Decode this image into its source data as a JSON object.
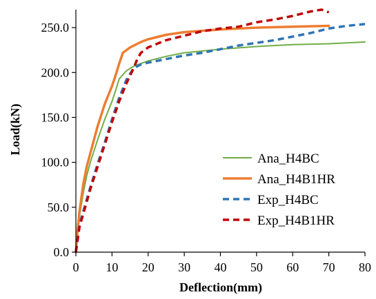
{
  "chart_data": {
    "type": "line",
    "title": "",
    "xlabel": "Deflection(mm)",
    "ylabel": "Load(kN)",
    "xlim": [
      0,
      80
    ],
    "ylim": [
      0,
      270
    ],
    "x_ticks": [
      0,
      10,
      20,
      30,
      40,
      50,
      60,
      70,
      80
    ],
    "x_tick_labels": [
      "0",
      "10",
      "20",
      "30",
      "40",
      "50",
      "60",
      "70",
      "80"
    ],
    "y_ticks": [
      0,
      50,
      100,
      150,
      200,
      250
    ],
    "y_tick_labels": [
      "0.0",
      "50.0",
      "100.0",
      "150.0",
      "200.0",
      "250.0"
    ],
    "grid": false,
    "legend_position": "lower-right",
    "series": [
      {
        "name": "Ana_H4BC",
        "color": "#70ad47",
        "style": "solid",
        "x": [
          0,
          0.5,
          1,
          2,
          3,
          4,
          6,
          8,
          10,
          11,
          12,
          14,
          16,
          20,
          25,
          30,
          40,
          50,
          60,
          70,
          80
        ],
        "y": [
          0,
          20,
          40,
          65,
          85,
          100,
          125,
          148,
          168,
          180,
          193,
          202,
          207,
          213,
          218,
          222,
          226,
          229,
          231,
          232,
          234
        ]
      },
      {
        "name": "Ana_H4B1HR",
        "color": "#ed7d31",
        "style": "solid",
        "x": [
          0,
          0.5,
          1,
          2,
          3,
          4,
          6,
          8,
          10,
          11,
          12,
          13,
          15,
          18,
          20,
          25,
          30,
          40,
          50,
          60,
          70
        ],
        "y": [
          0,
          25,
          45,
          75,
          95,
          110,
          140,
          165,
          185,
          197,
          210,
          222,
          228,
          234,
          237,
          242,
          245,
          248,
          250,
          251,
          252
        ]
      },
      {
        "name": "Exp_H4BC",
        "color": "#2e75b6",
        "style": "dashed",
        "x": [
          0,
          1,
          2,
          4,
          6,
          8,
          10,
          12,
          14,
          16,
          18,
          20,
          25,
          30,
          35,
          40,
          45,
          50,
          55,
          60,
          65,
          70,
          75,
          80
        ],
        "y": [
          0,
          30,
          45,
          72,
          98,
          122,
          148,
          172,
          192,
          205,
          209,
          211,
          215,
          219,
          222,
          226,
          230,
          233,
          236,
          240,
          244,
          249,
          252,
          254
        ]
      },
      {
        "name": "Exp_H4B1HR",
        "color": "#c00000",
        "style": "dashed",
        "x": [
          0,
          1,
          2,
          4,
          6,
          8,
          10,
          12,
          14,
          16,
          17,
          18,
          20,
          25,
          30,
          35,
          40,
          45,
          50,
          55,
          60,
          65,
          68,
          70
        ],
        "y": [
          0,
          28,
          42,
          70,
          95,
          120,
          145,
          168,
          188,
          205,
          215,
          222,
          228,
          236,
          241,
          246,
          249,
          251,
          256,
          259,
          263,
          268,
          270,
          267
        ]
      }
    ]
  }
}
